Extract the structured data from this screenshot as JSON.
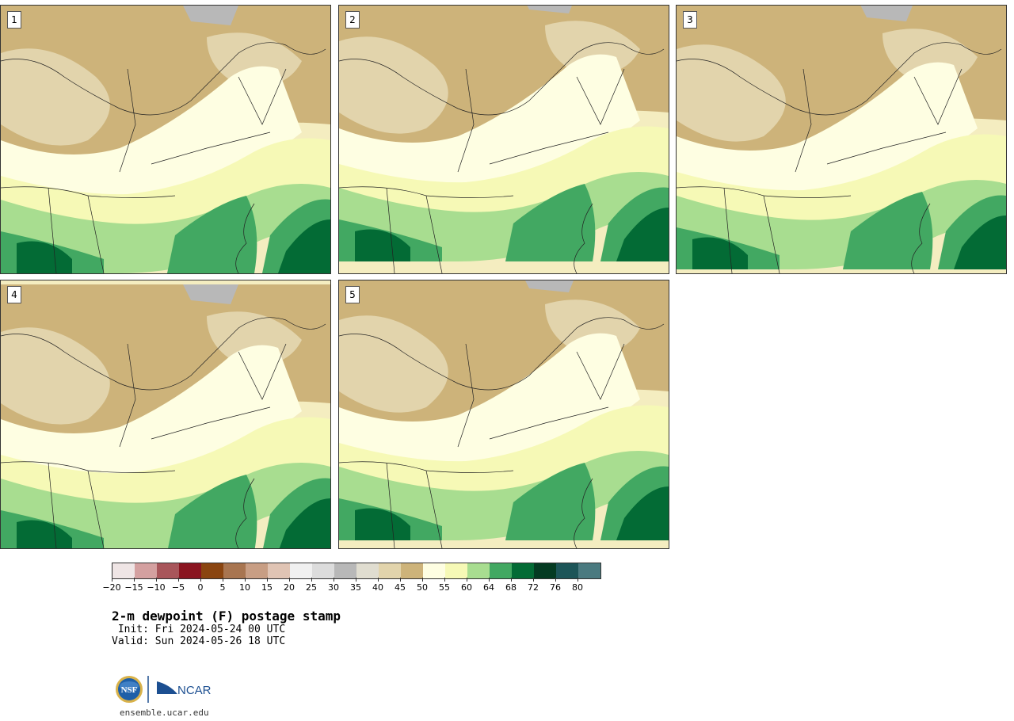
{
  "panels": [
    {
      "label": "1"
    },
    {
      "label": "2"
    },
    {
      "label": "3"
    },
    {
      "label": "4"
    },
    {
      "label": "5"
    }
  ],
  "colorbar": {
    "colors": [
      "#efe5e5",
      "#d4a0a0",
      "#a8555a",
      "#8a1520",
      "#8a4510",
      "#a87550",
      "#c89e84",
      "#e0c4b4",
      "#f0f0f0",
      "#dcdcdc",
      "#b8b8b8",
      "#e0ddd0",
      "#e2d4ac",
      "#cdb37a",
      "#fefee2",
      "#f6f9b6",
      "#a8dd90",
      "#42a862",
      "#036b35",
      "#043b22",
      "#1c5558",
      "#4a7a80"
    ],
    "tick_labels": [
      "−20",
      "−15",
      "−10",
      "−5",
      "0",
      "5",
      "10",
      "15",
      "20",
      "25",
      "30",
      "35",
      "40",
      "45",
      "50",
      "55",
      "60",
      "64",
      "68",
      "72",
      "76",
      "80"
    ]
  },
  "title": "2-m dewpoint (F) postage stamp",
  "init": " Init: Fri 2024-05-24 00 UTC",
  "valid": "Valid: Sun 2024-05-26 18 UTC",
  "logos": {
    "nsf": "NSF",
    "ncar": "NCAR"
  },
  "website": "ensemble.ucar.edu"
}
